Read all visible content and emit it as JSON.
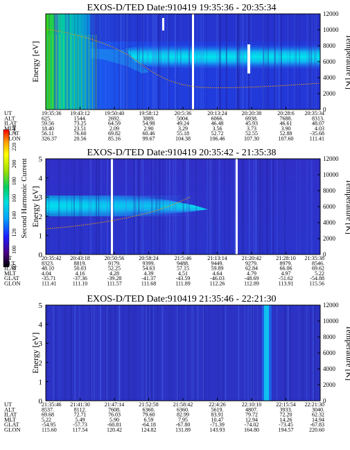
{
  "colorbar": {
    "label": "Second Harmonic Current",
    "ticks": [
      "80",
      "100",
      "120",
      "140",
      "160",
      "180",
      "200",
      "220",
      "240"
    ],
    "colors": [
      "#000000",
      "#4b0082",
      "#1c1cff",
      "#00a0ff",
      "#00e0e0",
      "#00d060",
      "#a0e000",
      "#ffff00",
      "#ffa000",
      "#ff0000"
    ]
  },
  "chart_data": [
    {
      "type": "heatmap",
      "title": "EXOS-D/TED   Date:910419  19:35:36 - 20:35:34",
      "ylabel": "Energy [eV]",
      "y2label": "Temperature [K]",
      "ylim": [
        0,
        5
      ],
      "y2lim": [
        0,
        12000
      ],
      "yticks": [
        "0",
        "1",
        "2",
        "3",
        "4",
        "5"
      ],
      "y2ticks": [
        "0",
        "2000",
        "4000",
        "6000",
        "8000",
        "10000",
        "12000"
      ],
      "row_labels": [
        "UT",
        "ALT",
        "ILAT",
        "MLT",
        "GLAT",
        "GLON"
      ],
      "columns": [
        [
          "19:35:36",
          "625.",
          "59.56",
          "18.40",
          "56.11",
          "326.37"
        ],
        [
          "19:43:12",
          "1544.",
          "73.25",
          "23.51",
          "76.60",
          "20.56"
        ],
        [
          "19:50:40",
          "2692.",
          "64.59",
          "2.09",
          "69.82",
          "85.16"
        ],
        [
          "19:58:12",
          "3889.",
          "54.98",
          "2.90",
          "60.46",
          "99.67"
        ],
        [
          "20:5:36",
          "5004.",
          "49.24",
          "3.29",
          "55.18",
          "104.38"
        ],
        [
          "20:13:24",
          "6066.",
          "46.48",
          "3.56",
          "52.72",
          "106.46"
        ],
        [
          "20:20:38",
          "6938.",
          "45.93",
          "3.73",
          "52.55",
          "107.30"
        ],
        [
          "20:28:6",
          "7688.",
          "46.61",
          "3.90",
          "52.88",
          "107.60"
        ],
        [
          "20:35:34",
          "8313.",
          "48.07",
          "4.03",
          "-35.68",
          "111.41"
        ]
      ],
      "temperature_trace": {
        "start": 4.9,
        "mid": 2.9,
        "end": 3.0
      }
    },
    {
      "type": "heatmap",
      "title": "EXOS-D/TED   Date:910419  20:35:42 - 21:35:38",
      "ylabel": "Energy [eV]",
      "y2label": "Temperature [K]",
      "ylim": [
        0,
        5
      ],
      "y2lim": [
        0,
        12000
      ],
      "yticks": [
        "0",
        "1",
        "2",
        "3",
        "4",
        "5"
      ],
      "y2ticks": [
        "0",
        "2000",
        "4000",
        "6000",
        "8000",
        "10000",
        "12000"
      ],
      "row_labels": [
        "UT",
        "ALT",
        "ILAT",
        "MLT",
        "GLAT",
        "GLON"
      ],
      "columns": [
        [
          "20:35:42",
          "8323.",
          "48.10",
          "4.04",
          "-35.71",
          "111.41"
        ],
        [
          "20:43:18",
          "8819.",
          "50.03",
          "4.16",
          "-37.36",
          "111.10"
        ],
        [
          "20:50:56",
          "9179.",
          "52.25",
          "4.28",
          "-39.28",
          "111.57"
        ],
        [
          "20:58:24",
          "9399.",
          "54.63",
          "4.39",
          "-41.37",
          "111.68"
        ],
        [
          "21:5:46",
          "9488.",
          "57.15",
          "4.51",
          "-43.59",
          "111.89"
        ],
        [
          "21:13:14",
          "9449.",
          "59.89",
          "4.64",
          "-46.03",
          "112.26"
        ],
        [
          "21:20:42",
          "9279.",
          "62.84",
          "4.79",
          "-48.69",
          "112.89"
        ],
        [
          "21:28:10",
          "8979.",
          "66.06",
          "4.97",
          "-51.62",
          "113.91"
        ],
        [
          "21:35:38",
          "8546.",
          "69.62",
          "5.22",
          "-54.88",
          "115.56"
        ]
      ]
    },
    {
      "type": "heatmap",
      "title": "EXOS-D/TED   Date:910419  21:35:46 - 22:21:30",
      "ylabel": "Energy [eV]",
      "y2label": "Temperature [K]",
      "ylim": [
        0,
        5
      ],
      "y2lim": [
        0,
        12000
      ],
      "yticks": [
        "0",
        "1",
        "2",
        "3",
        "4",
        "5"
      ],
      "y2ticks": [
        "0",
        "2000",
        "4000",
        "6000",
        "8000",
        "10000",
        "12000"
      ],
      "row_labels": [
        "UT",
        "ALT",
        "ILAT",
        "MLT",
        "GLAT",
        "GLON"
      ],
      "columns": [
        [
          "21:35:46",
          "8537.",
          "69.68",
          "5.22",
          "-54.95",
          "115.60"
        ],
        [
          "21:41:30",
          "8112.",
          "72.71",
          "5.49",
          "-57.73",
          "117.54"
        ],
        [
          "21:47:14",
          "7608.",
          "76.03",
          "5.90",
          "-60.81",
          "120.42"
        ],
        [
          "21:52:58",
          "6360.",
          "79.60",
          "6.59",
          "-64.18",
          "124.82"
        ],
        [
          "21:58:42",
          "6360.",
          "82.99",
          "7.95",
          "-67.80",
          "131.89"
        ],
        [
          "22:4:26",
          "5619.",
          "83.91",
          "10.47",
          "-71.39",
          "143.93"
        ],
        [
          "22:10:10",
          "4807.",
          "79.72",
          "12.94",
          "-74.02",
          "164.80"
        ],
        [
          "22:15:54",
          "3933.",
          "72.20",
          "14.26",
          "-73.45",
          "194.57"
        ],
        [
          "22:21:30",
          "3040.",
          "62.32",
          "14.94",
          "-67.83",
          "220.60"
        ]
      ]
    }
  ]
}
